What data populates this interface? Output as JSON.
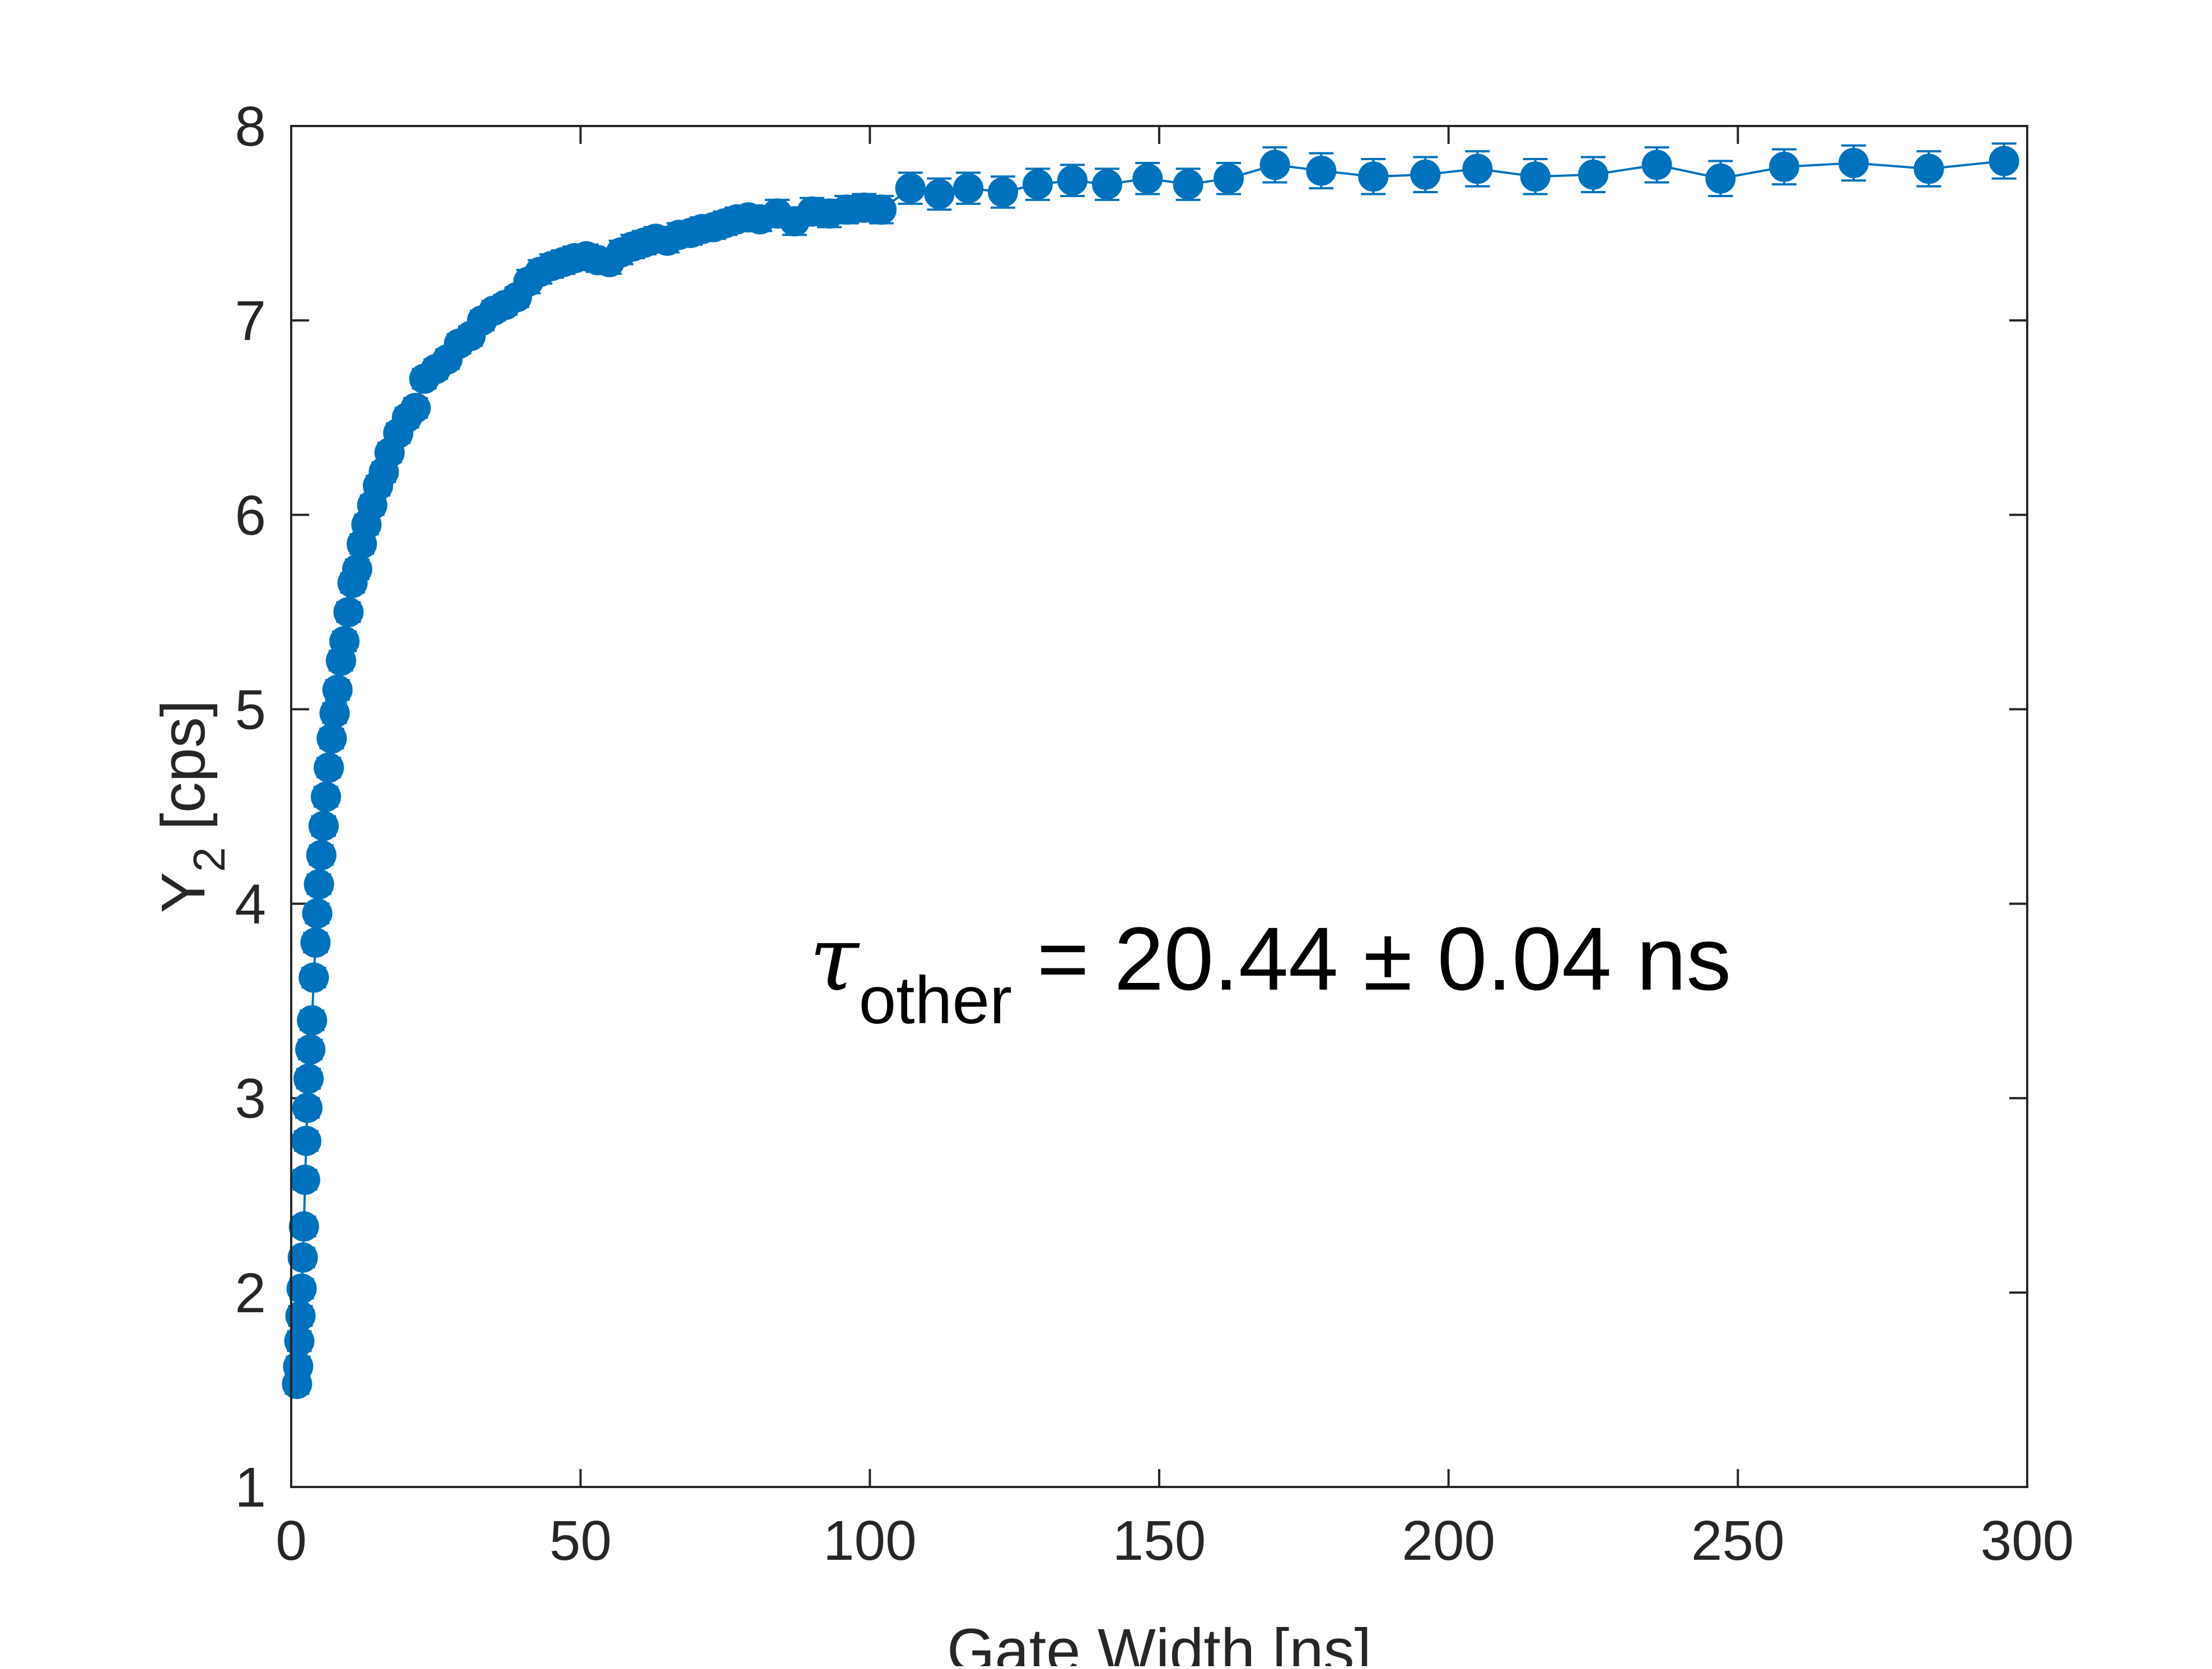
{
  "chart_data": {
    "type": "scatter",
    "title": "",
    "xlabel": "Gate Width [ns]",
    "ylabel": "Y",
    "ylabel_subscript": "2",
    "ylabel_unit": "[cps]",
    "xlim": [
      0,
      300
    ],
    "ylim": [
      1,
      8
    ],
    "xticks": [
      0,
      50,
      100,
      150,
      200,
      250,
      300
    ],
    "yticks": [
      1,
      2,
      3,
      4,
      5,
      6,
      7,
      8
    ],
    "grid": false,
    "color": "#0072BD",
    "annotation": {
      "symbol": "τ",
      "subscript": "other",
      "text": " = 20.44 ± 0.04 ns"
    },
    "series": [
      {
        "name": "Y2",
        "style": "line+markers+errorbars",
        "x": [
          1,
          1.2,
          1.4,
          1.6,
          1.8,
          2,
          2.2,
          2.4,
          2.6,
          2.8,
          3,
          3.3,
          3.6,
          3.9,
          4.2,
          4.5,
          4.8,
          5.2,
          5.6,
          6,
          6.5,
          7,
          7.5,
          8,
          8.6,
          9.2,
          9.9,
          10.6,
          11.4,
          12.2,
          13,
          14,
          15,
          16,
          17,
          18.5,
          20,
          21.5,
          23,
          25,
          27,
          29,
          31,
          33,
          35,
          37,
          39,
          41,
          43,
          45,
          47,
          49,
          51,
          53,
          55,
          57,
          59,
          61,
          63,
          65,
          67,
          69,
          71,
          73,
          75,
          77,
          79,
          81,
          84,
          87,
          90,
          93,
          96,
          99,
          102,
          107,
          112,
          117,
          123,
          129,
          135,
          141,
          148,
          155,
          162,
          170,
          178,
          187,
          196,
          205,
          215,
          225,
          236,
          247,
          258,
          270,
          283,
          296
        ],
        "y": [
          1.53,
          1.62,
          1.75,
          1.88,
          2.02,
          2.18,
          2.34,
          2.58,
          2.78,
          2.95,
          3.1,
          3.25,
          3.4,
          3.62,
          3.8,
          3.95,
          4.1,
          4.25,
          4.4,
          4.55,
          4.7,
          4.85,
          4.98,
          5.1,
          5.25,
          5.35,
          5.5,
          5.65,
          5.72,
          5.85,
          5.95,
          6.05,
          6.15,
          6.22,
          6.32,
          6.42,
          6.5,
          6.55,
          6.7,
          6.75,
          6.8,
          6.88,
          6.92,
          7.0,
          7.05,
          7.08,
          7.12,
          7.2,
          7.25,
          7.28,
          7.3,
          7.32,
          7.33,
          7.31,
          7.3,
          7.35,
          7.38,
          7.4,
          7.42,
          7.41,
          7.44,
          7.45,
          7.47,
          7.48,
          7.5,
          7.52,
          7.53,
          7.52,
          7.55,
          7.51,
          7.56,
          7.55,
          7.57,
          7.58,
          7.57,
          7.68,
          7.65,
          7.68,
          7.66,
          7.7,
          7.72,
          7.7,
          7.73,
          7.7,
          7.73,
          7.8,
          7.77,
          7.74,
          7.75,
          7.78,
          7.74,
          7.75,
          7.8,
          7.73,
          7.79,
          7.81,
          7.78,
          7.82
        ],
        "yerr": [
          0.05,
          0.05,
          0.05,
          0.05,
          0.05,
          0.05,
          0.05,
          0.05,
          0.05,
          0.05,
          0.05,
          0.05,
          0.05,
          0.05,
          0.05,
          0.05,
          0.05,
          0.05,
          0.05,
          0.05,
          0.05,
          0.05,
          0.05,
          0.05,
          0.05,
          0.05,
          0.05,
          0.05,
          0.05,
          0.05,
          0.05,
          0.05,
          0.05,
          0.05,
          0.05,
          0.05,
          0.05,
          0.05,
          0.05,
          0.05,
          0.05,
          0.05,
          0.05,
          0.05,
          0.05,
          0.05,
          0.05,
          0.06,
          0.06,
          0.06,
          0.06,
          0.06,
          0.06,
          0.06,
          0.06,
          0.06,
          0.06,
          0.06,
          0.06,
          0.06,
          0.06,
          0.06,
          0.06,
          0.06,
          0.06,
          0.06,
          0.06,
          0.06,
          0.07,
          0.07,
          0.07,
          0.07,
          0.07,
          0.07,
          0.07,
          0.08,
          0.08,
          0.08,
          0.08,
          0.08,
          0.08,
          0.08,
          0.08,
          0.08,
          0.08,
          0.09,
          0.09,
          0.09,
          0.09,
          0.09,
          0.09,
          0.09,
          0.09,
          0.09,
          0.09,
          0.09,
          0.09,
          0.09
        ]
      }
    ]
  }
}
